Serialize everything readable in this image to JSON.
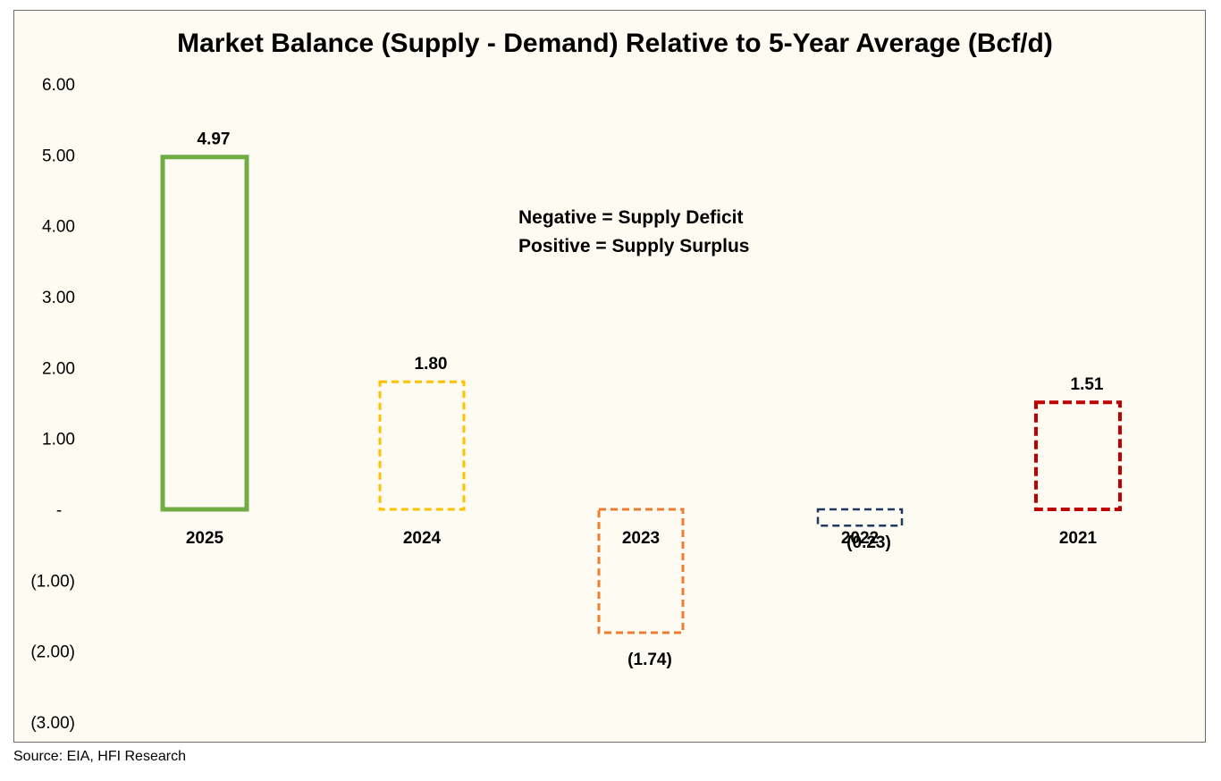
{
  "chart_data": {
    "type": "bar",
    "title": "Market Balance (Supply - Demand) Relative to 5-Year Average (Bcf/d)",
    "categories": [
      "2025",
      "2024",
      "2023",
      "2022",
      "2021"
    ],
    "values": [
      4.97,
      1.8,
      -1.74,
      -0.23,
      1.51
    ],
    "data_labels": [
      "4.97",
      "1.80",
      "(1.74)",
      "(0.23)",
      "1.51"
    ],
    "colors": [
      "#70ad47",
      "#ffc000",
      "#ed7d31",
      "#1f3864",
      "#c00000"
    ],
    "dashed": [
      false,
      true,
      true,
      true,
      true
    ],
    "y_ticks": [
      6,
      5,
      4,
      3,
      2,
      1,
      0,
      -1,
      -2,
      -3
    ],
    "y_tick_labels": [
      "6.00",
      "5.00",
      "4.00",
      "3.00",
      "2.00",
      "1.00",
      "-",
      "(1.00)",
      "(2.00)",
      "(3.00)"
    ],
    "ylim": [
      -3,
      6
    ],
    "grid": false,
    "legend": "none",
    "annotation": [
      "Negative = Supply Deficit",
      "Positive = Supply Surplus"
    ]
  },
  "source": "Source: EIA, HFI Research"
}
